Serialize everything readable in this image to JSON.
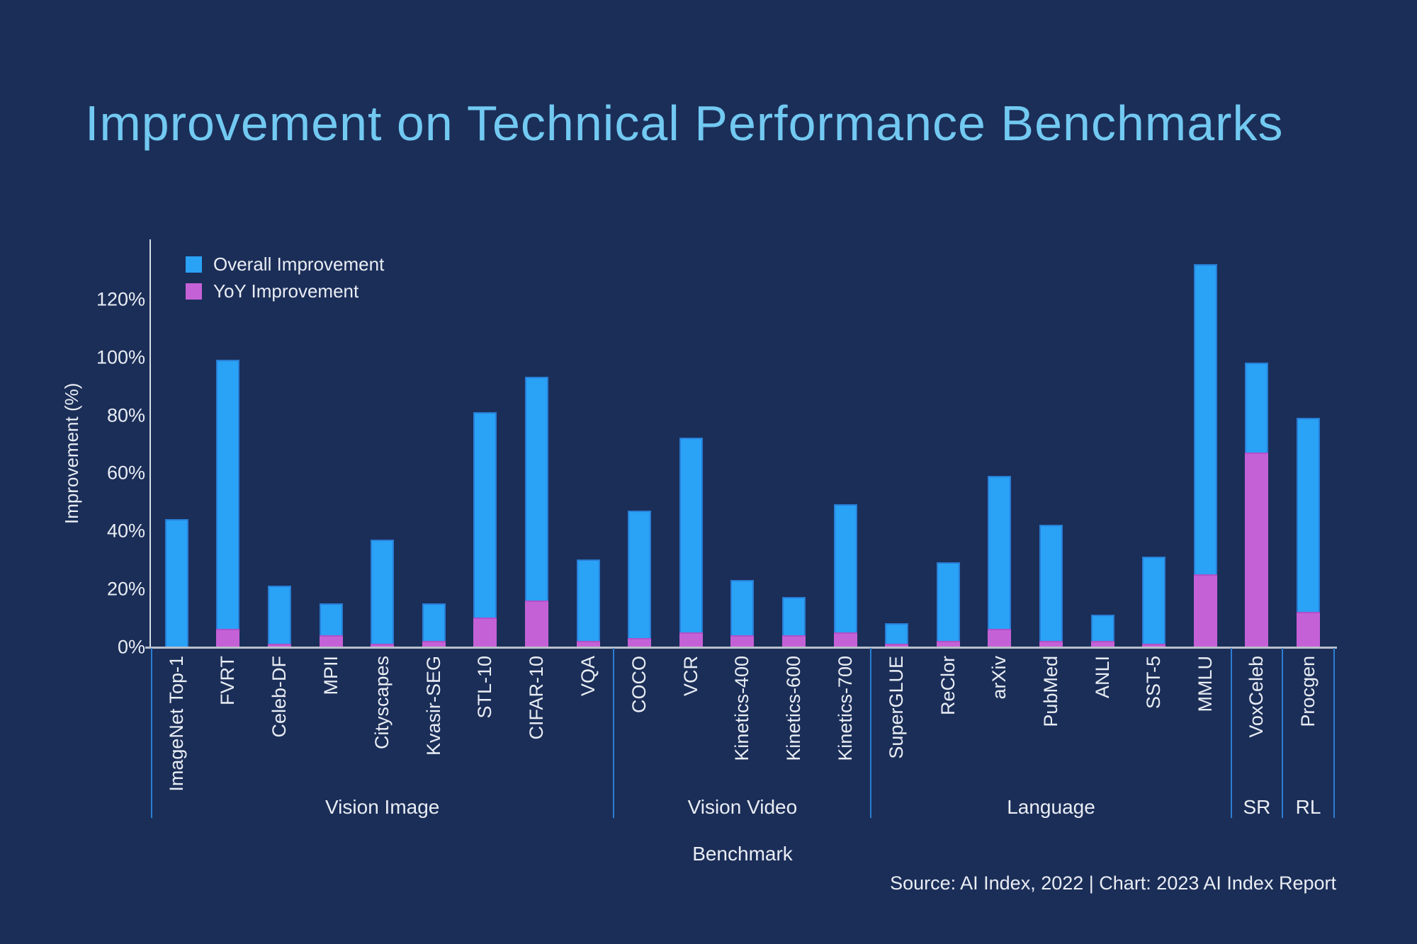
{
  "title": "Improvement on Technical Performance Benchmarks",
  "legend": {
    "items": [
      {
        "label": "Overall Improvement",
        "color": "#2aa2f6"
      },
      {
        "label": "YoY Improvement",
        "color": "#c561d6"
      }
    ]
  },
  "source": "Source: AI Index, 2022 | Chart: 2023 AI Index Report",
  "colors": {
    "background": "#1b2e58",
    "title": "#72c9f1",
    "overall_bar": "#2aa2f6",
    "yoy_bar": "#c561d6",
    "axis_line": "#b9c0cb",
    "separator": "#2b7ed2",
    "text": "#e9edf4"
  },
  "chart_data": {
    "type": "bar",
    "stacked_overlay": "YoY segment is drawn over the bottom of the Overall bar (not additive)",
    "title": "Improvement on Technical Performance Benchmarks",
    "xlabel": "Benchmark",
    "ylabel": "Improvement (%)",
    "ylim": [
      0,
      135
    ],
    "y_ticks_pct": [
      0,
      20,
      40,
      60,
      80,
      100,
      120
    ],
    "y_tick_labels": [
      "0%",
      "20%",
      "40%",
      "60%",
      "80%",
      "100%",
      "120%"
    ],
    "grid": false,
    "legend_position": "top-left inside plot",
    "categories": [
      "ImageNet Top-1",
      "FVRT",
      "Celeb-DF",
      "MPII",
      "Cityscapes",
      "Kvasir-SEG",
      "STL-10",
      "CIFAR-10",
      "VQA",
      "COCO",
      "VCR",
      "Kinetics-400",
      "Kinetics-600",
      "Kinetics-700",
      "SuperGLUE",
      "ReClor",
      "arXiv",
      "PubMed",
      "ANLI",
      "SST-5",
      "MMLU",
      "VoxCeleb",
      "Procgen"
    ],
    "series": [
      {
        "name": "Overall Improvement",
        "values": [
          44,
          99,
          21,
          15,
          37,
          15,
          81,
          93,
          30,
          47,
          72,
          23,
          17,
          49,
          8,
          29,
          59,
          42,
          11,
          31,
          132,
          98,
          79
        ]
      },
      {
        "name": "YoY Improvement",
        "values": [
          0,
          6,
          1,
          4,
          1,
          2,
          10,
          16,
          2,
          3,
          5,
          4,
          4,
          5,
          1,
          2,
          6,
          2,
          2,
          1,
          25,
          67,
          12
        ]
      }
    ],
    "groups": [
      {
        "label": "Vision Image",
        "count": 9
      },
      {
        "label": "Vision Video",
        "count": 5
      },
      {
        "label": "Language",
        "count": 7
      },
      {
        "label": "SR",
        "count": 1
      },
      {
        "label": "RL",
        "count": 1
      }
    ]
  }
}
